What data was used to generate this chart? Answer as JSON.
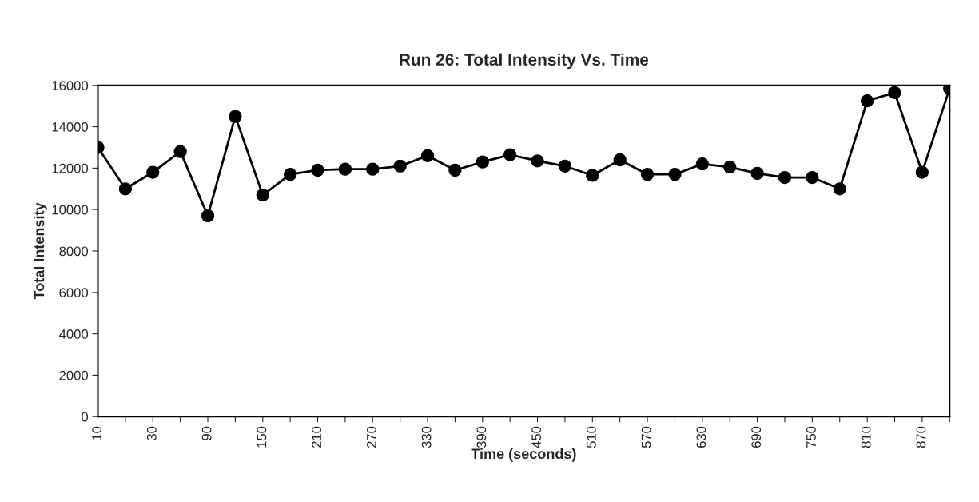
{
  "chart_data": {
    "type": "line",
    "title": "Run 26: Total Intensity Vs. Time",
    "xlabel": "Time (seconds)",
    "ylabel": "Total Intensity",
    "categories": [
      "10",
      null,
      "30",
      null,
      "90",
      null,
      "150",
      null,
      "210",
      null,
      "270",
      null,
      "330",
      null,
      "390",
      null,
      "450",
      null,
      "510",
      null,
      "570",
      null,
      "630",
      null,
      "690",
      null,
      "750",
      null,
      "810",
      null,
      "870",
      null
    ],
    "series": [
      {
        "color": "#000000",
        "values": [
          13000,
          11000,
          11800,
          12800,
          9700,
          14500,
          10700,
          11700,
          11900,
          11950,
          11950,
          12100,
          12600,
          11900,
          12300,
          12650,
          12350,
          12100,
          11650,
          12400,
          11700,
          11700,
          12200,
          12050,
          11750,
          11550,
          11550,
          11000,
          15250,
          15650,
          11800,
          15850
        ]
      }
    ],
    "ylim": [
      0,
      16000
    ],
    "yticks": [
      0,
      2000,
      4000,
      6000,
      8000,
      10000,
      12000,
      14000,
      16000
    ],
    "grid": false,
    "legend": false,
    "marker": "circle",
    "line_style": "solid"
  }
}
